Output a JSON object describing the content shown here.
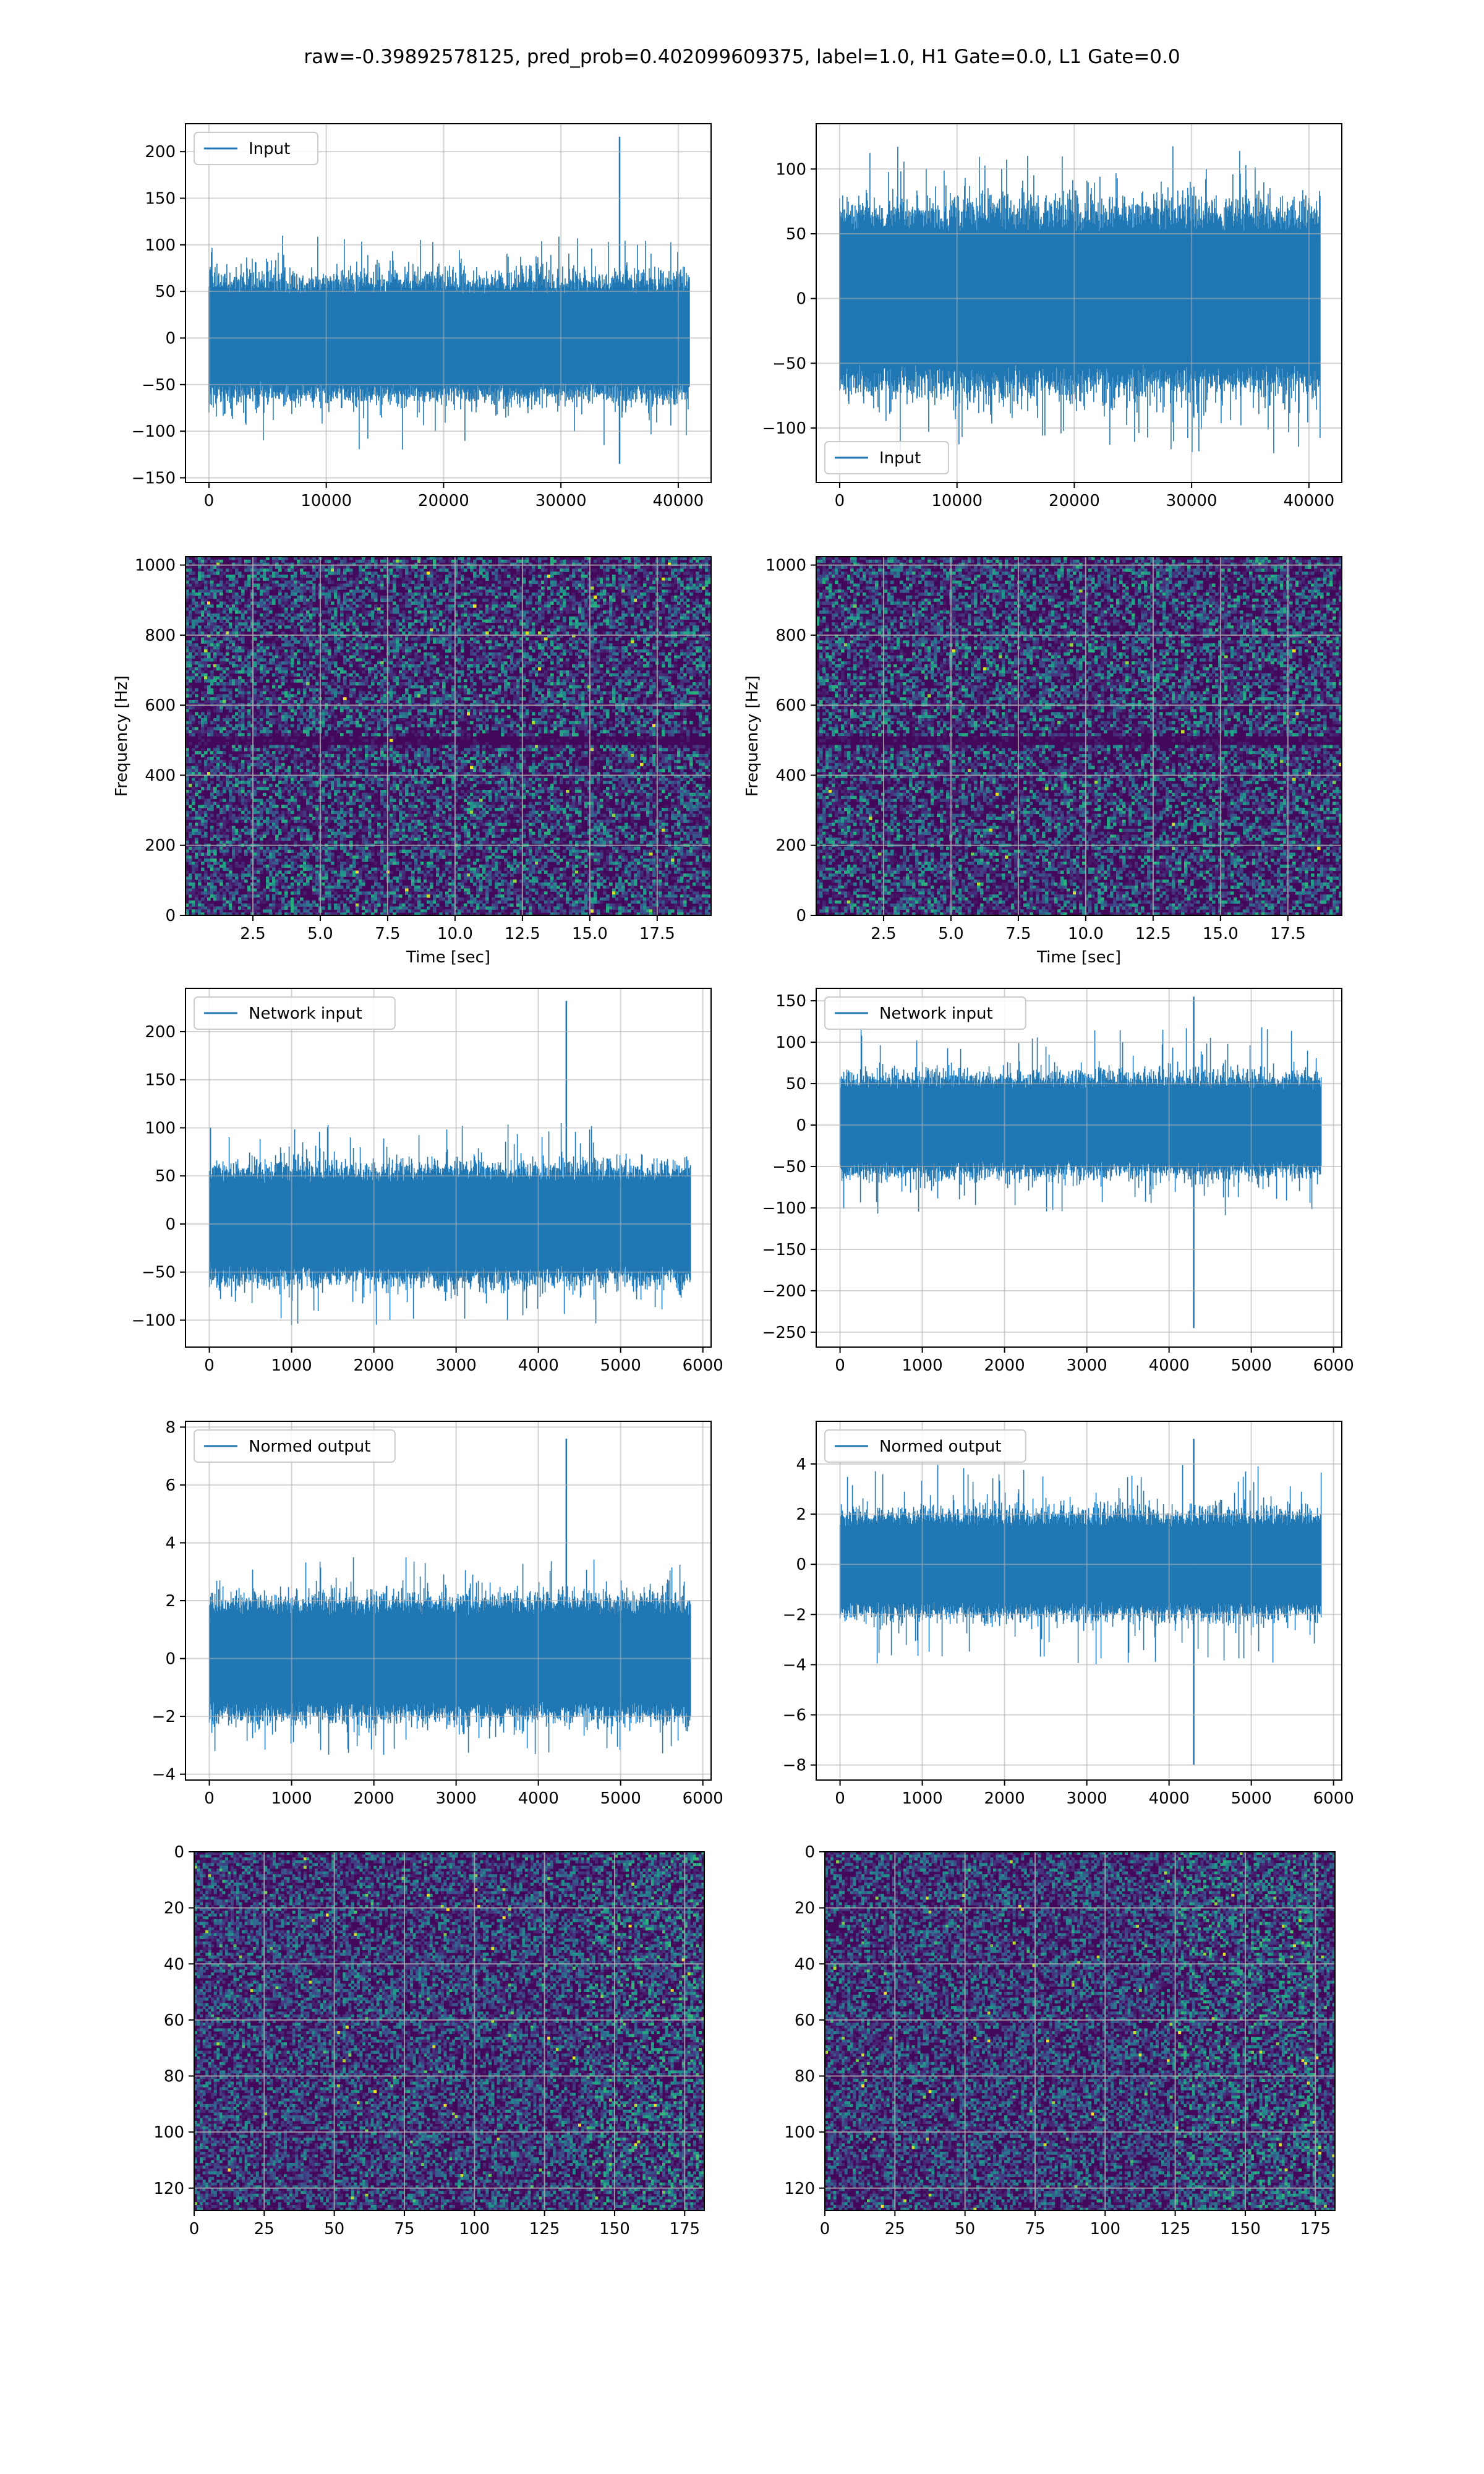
{
  "suptitle": "raw=-0.39892578125, pred_prob=0.402099609375, label=1.0, H1 Gate=0.0, L1 Gate=0.0",
  "colors": {
    "series": "#1f77b4",
    "grid": "#b0b0b0",
    "axes": "#000000",
    "legend_edge": "#cccccc"
  },
  "colormap": "viridis",
  "chart_data": [
    {
      "id": "h1-input",
      "type": "line",
      "title": "",
      "xlabel": "",
      "ylabel": "",
      "legend": {
        "text": "Input",
        "loc": "upper-left"
      },
      "xlim": [
        -2000,
        42800
      ],
      "ylim": [
        -155,
        230
      ],
      "xticks": [
        0,
        10000,
        20000,
        30000,
        40000
      ],
      "yticks": [
        -150,
        -100,
        -50,
        0,
        50,
        100,
        150,
        200
      ],
      "x_range": [
        0,
        40960
      ],
      "typical_amp": 60,
      "max_amp": 110,
      "min_amp": -120,
      "spikes": [
        {
          "x": 35000,
          "y": 216
        },
        {
          "x": 35000,
          "y": -135
        }
      ],
      "grid": true
    },
    {
      "id": "l1-input",
      "type": "line",
      "title": "",
      "xlabel": "",
      "ylabel": "",
      "legend": {
        "text": "Input",
        "loc": "lower-left"
      },
      "xlim": [
        -2000,
        42800
      ],
      "ylim": [
        -142,
        135
      ],
      "xticks": [
        0,
        10000,
        20000,
        30000,
        40000
      ],
      "yticks": [
        -100,
        -50,
        0,
        50,
        100
      ],
      "x_range": [
        0,
        40960
      ],
      "typical_amp": 65,
      "max_amp": 118,
      "min_amp": -120,
      "spikes": [],
      "grid": true
    },
    {
      "id": "h1-spectrogram",
      "type": "heatmap",
      "title": "",
      "xlabel": "Time [sec]",
      "ylabel": "Frequency [Hz]",
      "xlim": [
        0,
        19.5
      ],
      "ylim": [
        0,
        1024
      ],
      "xticks": [
        2.5,
        5.0,
        7.5,
        10.0,
        12.5,
        15.0,
        17.5
      ],
      "xtick_labels": [
        "2.5",
        "5.0",
        "7.5",
        "10.0",
        "12.5",
        "15.0",
        "17.5"
      ],
      "yticks": [
        0,
        200,
        400,
        600,
        800,
        1000
      ],
      "dark_band_hz": 500,
      "grid": true
    },
    {
      "id": "l1-spectrogram",
      "type": "heatmap",
      "title": "",
      "xlabel": "Time [sec]",
      "ylabel": "Frequency [Hz]",
      "xlim": [
        0,
        19.5
      ],
      "ylim": [
        0,
        1024
      ],
      "xticks": [
        2.5,
        5.0,
        7.5,
        10.0,
        12.5,
        15.0,
        17.5
      ],
      "xtick_labels": [
        "2.5",
        "5.0",
        "7.5",
        "10.0",
        "12.5",
        "15.0",
        "17.5"
      ],
      "yticks": [
        0,
        200,
        400,
        600,
        800,
        1000
      ],
      "dark_band_hz": 500,
      "grid": true
    },
    {
      "id": "h1-network-input",
      "type": "line",
      "title": "",
      "xlabel": "",
      "ylabel": "",
      "legend": {
        "text": "Network input",
        "loc": "upper-left"
      },
      "xlim": [
        -290,
        6100
      ],
      "ylim": [
        -128,
        245
      ],
      "xticks": [
        0,
        1000,
        2000,
        3000,
        4000,
        5000,
        6000
      ],
      "yticks": [
        -100,
        -50,
        0,
        50,
        100,
        150,
        200
      ],
      "x_range": [
        0,
        5850
      ],
      "typical_amp": 55,
      "max_amp": 105,
      "min_amp": -105,
      "spikes": [
        {
          "x": 4340,
          "y": 232
        }
      ],
      "grid": true
    },
    {
      "id": "l1-network-input",
      "type": "line",
      "title": "",
      "xlabel": "",
      "ylabel": "",
      "legend": {
        "text": "Network input",
        "loc": "upper-left"
      },
      "xlim": [
        -290,
        6100
      ],
      "ylim": [
        -268,
        165
      ],
      "xticks": [
        0,
        1000,
        2000,
        3000,
        4000,
        5000,
        6000
      ],
      "yticks": [
        -250,
        -200,
        -150,
        -100,
        -50,
        0,
        50,
        100,
        150
      ],
      "x_range": [
        0,
        5850
      ],
      "typical_amp": 55,
      "max_amp": 120,
      "min_amp": -110,
      "spikes": [
        {
          "x": 4300,
          "y": 155
        },
        {
          "x": 4300,
          "y": -245
        }
      ],
      "grid": true
    },
    {
      "id": "h1-normed-output",
      "type": "line",
      "title": "",
      "xlabel": "",
      "ylabel": "",
      "legend": {
        "text": "Normed output",
        "loc": "upper-left"
      },
      "xlim": [
        -290,
        6100
      ],
      "ylim": [
        -4.2,
        8.2
      ],
      "xticks": [
        0,
        1000,
        2000,
        3000,
        4000,
        5000,
        6000
      ],
      "yticks": [
        -4,
        -2,
        0,
        2,
        4,
        6,
        8
      ],
      "x_range": [
        0,
        5850
      ],
      "typical_amp": 1.9,
      "max_amp": 3.5,
      "min_amp": -3.4,
      "spikes": [
        {
          "x": 4340,
          "y": 7.6
        }
      ],
      "grid": true
    },
    {
      "id": "l1-normed-output",
      "type": "line",
      "title": "",
      "xlabel": "",
      "ylabel": "",
      "legend": {
        "text": "Normed output",
        "loc": "upper-left"
      },
      "xlim": [
        -290,
        6100
      ],
      "ylim": [
        -8.6,
        5.7
      ],
      "xticks": [
        0,
        1000,
        2000,
        3000,
        4000,
        5000,
        6000
      ],
      "yticks": [
        -8,
        -6,
        -4,
        -2,
        0,
        2,
        4
      ],
      "x_range": [
        0,
        5850
      ],
      "typical_amp": 1.9,
      "max_amp": 4.0,
      "min_amp": -4.0,
      "spikes": [
        {
          "x": 4300,
          "y": 5.0
        },
        {
          "x": 4300,
          "y": -8.0
        }
      ],
      "grid": true
    },
    {
      "id": "h1-image",
      "type": "heatmap",
      "title": "",
      "xlabel": "",
      "ylabel": "",
      "xlim": [
        0,
        182
      ],
      "ylim": [
        128,
        0
      ],
      "xticks": [
        0,
        25,
        50,
        75,
        100,
        125,
        150,
        175
      ],
      "yticks": [
        0,
        20,
        40,
        60,
        80,
        100,
        120
      ],
      "rows": 128,
      "cols": 182,
      "bright_region": [
        140,
        182
      ],
      "grid": true
    },
    {
      "id": "l1-image",
      "type": "heatmap",
      "title": "",
      "xlabel": "",
      "ylabel": "",
      "xlim": [
        0,
        182
      ],
      "ylim": [
        128,
        0
      ],
      "xticks": [
        0,
        25,
        50,
        75,
        100,
        125,
        150,
        175
      ],
      "yticks": [
        0,
        20,
        40,
        60,
        80,
        100,
        120
      ],
      "rows": 128,
      "cols": 182,
      "bright_region": [
        125,
        175
      ],
      "grid": true
    }
  ]
}
